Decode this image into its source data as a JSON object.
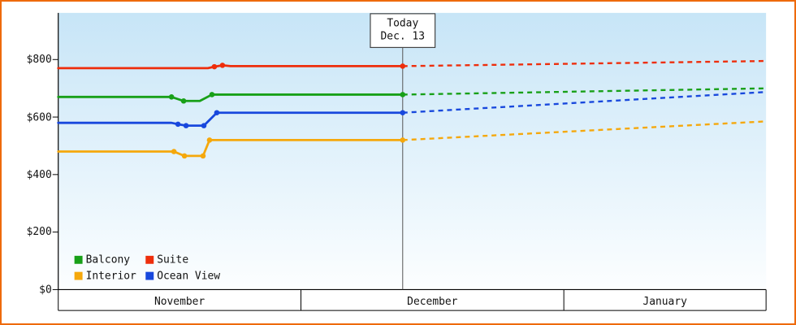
{
  "chart": {
    "y_axis": {
      "ticks": [
        "$0",
        "$200",
        "$400",
        "$600",
        "$800"
      ]
    },
    "legend": [
      {
        "label": "Balcony",
        "color": "#18a018"
      },
      {
        "label": "Suite",
        "color": "#ee2e0c"
      },
      {
        "label": "Interior",
        "color": "#f5a80c"
      },
      {
        "label": "Ocean View",
        "color": "#1848dd"
      }
    ]
  },
  "chart_data": {
    "type": "line",
    "ylim": [
      0,
      800
    ],
    "y_ticks": [
      0,
      200,
      400,
      600,
      800
    ],
    "x_unit": "days from Nov 1",
    "months": [
      {
        "label": "November",
        "days": 30
      },
      {
        "label": "December",
        "days": 31
      },
      {
        "label": "January",
        "days": 31
      }
    ],
    "today": {
      "day": 42,
      "label_line1": "Today",
      "label_line2": "Dec. 13"
    },
    "series": [
      {
        "name": "Interior",
        "color": "#f5a80c",
        "history": [
          [
            0,
            480
          ],
          [
            14.3,
            480
          ],
          [
            15.6,
            465
          ],
          [
            17.9,
            465
          ],
          [
            18.7,
            520
          ],
          [
            42,
            520
          ]
        ],
        "markers": [
          [
            14.3,
            480
          ],
          [
            15.6,
            465
          ],
          [
            17.9,
            465
          ],
          [
            18.7,
            520
          ],
          [
            42,
            520
          ]
        ],
        "forecast": [
          [
            42,
            520
          ],
          [
            92,
            585
          ]
        ]
      },
      {
        "name": "Ocean View",
        "color": "#1848dd",
        "history": [
          [
            0,
            580
          ],
          [
            14,
            580
          ],
          [
            14.8,
            575
          ],
          [
            15.8,
            570
          ],
          [
            18,
            570
          ],
          [
            19.6,
            615
          ],
          [
            42,
            615
          ]
        ],
        "markers": [
          [
            14.8,
            575
          ],
          [
            15.8,
            570
          ],
          [
            18,
            570
          ],
          [
            19.6,
            615
          ],
          [
            42,
            615
          ]
        ],
        "forecast": [
          [
            42,
            615
          ],
          [
            92,
            687
          ]
        ]
      },
      {
        "name": "Balcony",
        "color": "#18a018",
        "history": [
          [
            0,
            670
          ],
          [
            14,
            670
          ],
          [
            15.5,
            656
          ],
          [
            17.5,
            656
          ],
          [
            19,
            678
          ],
          [
            42,
            678
          ]
        ],
        "markers": [
          [
            14,
            670
          ],
          [
            15.5,
            656
          ],
          [
            19,
            678
          ],
          [
            42,
            678
          ]
        ],
        "forecast": [
          [
            42,
            678
          ],
          [
            92,
            700
          ]
        ]
      },
      {
        "name": "Suite",
        "color": "#ee2e0c",
        "history": [
          [
            0,
            770
          ],
          [
            18.5,
            770
          ],
          [
            19.3,
            775
          ],
          [
            20.3,
            780
          ],
          [
            21.3,
            777
          ],
          [
            42,
            777
          ]
        ],
        "markers": [
          [
            19.3,
            775
          ],
          [
            20.3,
            780
          ],
          [
            42,
            777
          ]
        ],
        "forecast": [
          [
            42,
            777
          ],
          [
            92,
            795
          ]
        ]
      }
    ]
  }
}
